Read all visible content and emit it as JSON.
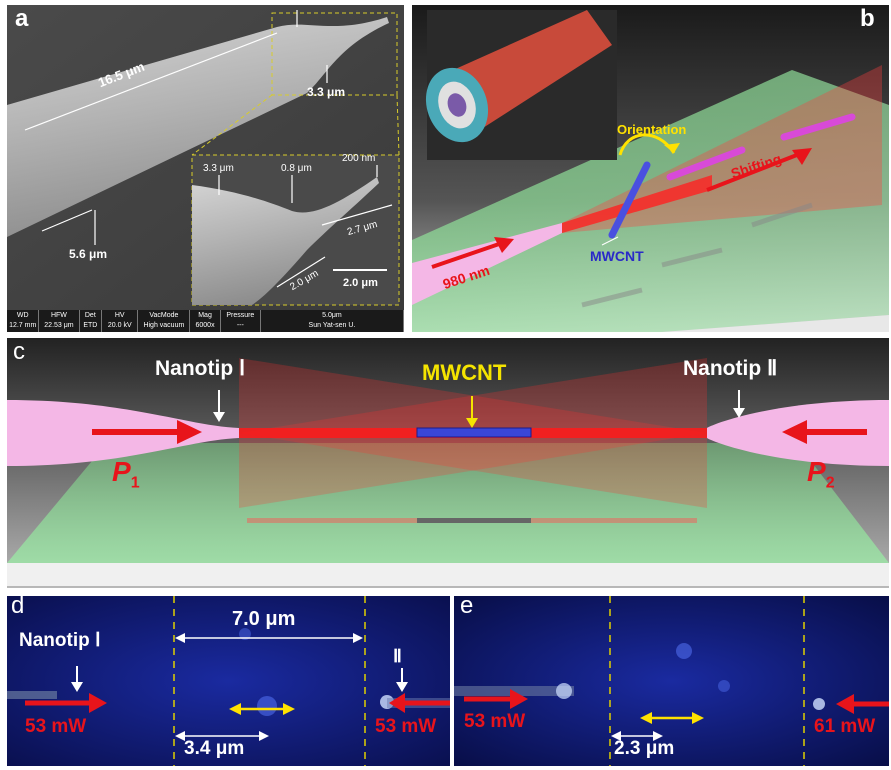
{
  "panel_a": {
    "letter": "a",
    "dim_main": "16.5 μm",
    "dim_tip": "3.3 μm",
    "dim_body": "5.6 μm",
    "inset": {
      "dim_left": "3.3 μm",
      "dim_mid": "0.8 μm",
      "dim_end": "200 nm",
      "dim_len1": "2.7 μm",
      "dim_len2": "2.0 μm",
      "scale": "2.0 μm"
    },
    "info_headers": [
      "WD",
      "HFW",
      "Det",
      "HV",
      "VacMode",
      "Mag",
      "Pressure",
      "5.0μm"
    ],
    "info_values": [
      "12.7 mm",
      "22.53 μm",
      "ETD",
      "20.0 kV",
      "High vacuum",
      "6000x",
      "---",
      "Sun Yat-sen U."
    ]
  },
  "panel_b": {
    "letter": "b",
    "orientation": "Orientation",
    "shifting": "Shifting",
    "mwcnt": "MWCNT",
    "wavelength": "980 nm"
  },
  "panel_c": {
    "letter": "c",
    "nanotip1": "Nanotip Ⅰ",
    "nanotip2": "Nanotip Ⅱ",
    "mwcnt": "MWCNT",
    "p1": "P",
    "p1_sub": "1",
    "p2": "P",
    "p2_sub": "2"
  },
  "panel_d": {
    "letter": "d",
    "nanotip1": "Nanotip Ⅰ",
    "tip2": "Ⅱ",
    "dist_top": "7.0 μm",
    "dist_bottom": "3.4 μm",
    "power_left": "53 mW",
    "power_right": "53 mW"
  },
  "panel_e": {
    "letter": "e",
    "dist": "2.3 μm",
    "power_left": "53 mW",
    "power_right": "61 mW"
  },
  "colors": {
    "label_red": "#e8141b",
    "mwcnt_yellow": "#f5e400",
    "arrow_yellow": "#ffe200",
    "dash_yellow": "#e0d000",
    "probe_pink": "#f4b7e6"
  }
}
